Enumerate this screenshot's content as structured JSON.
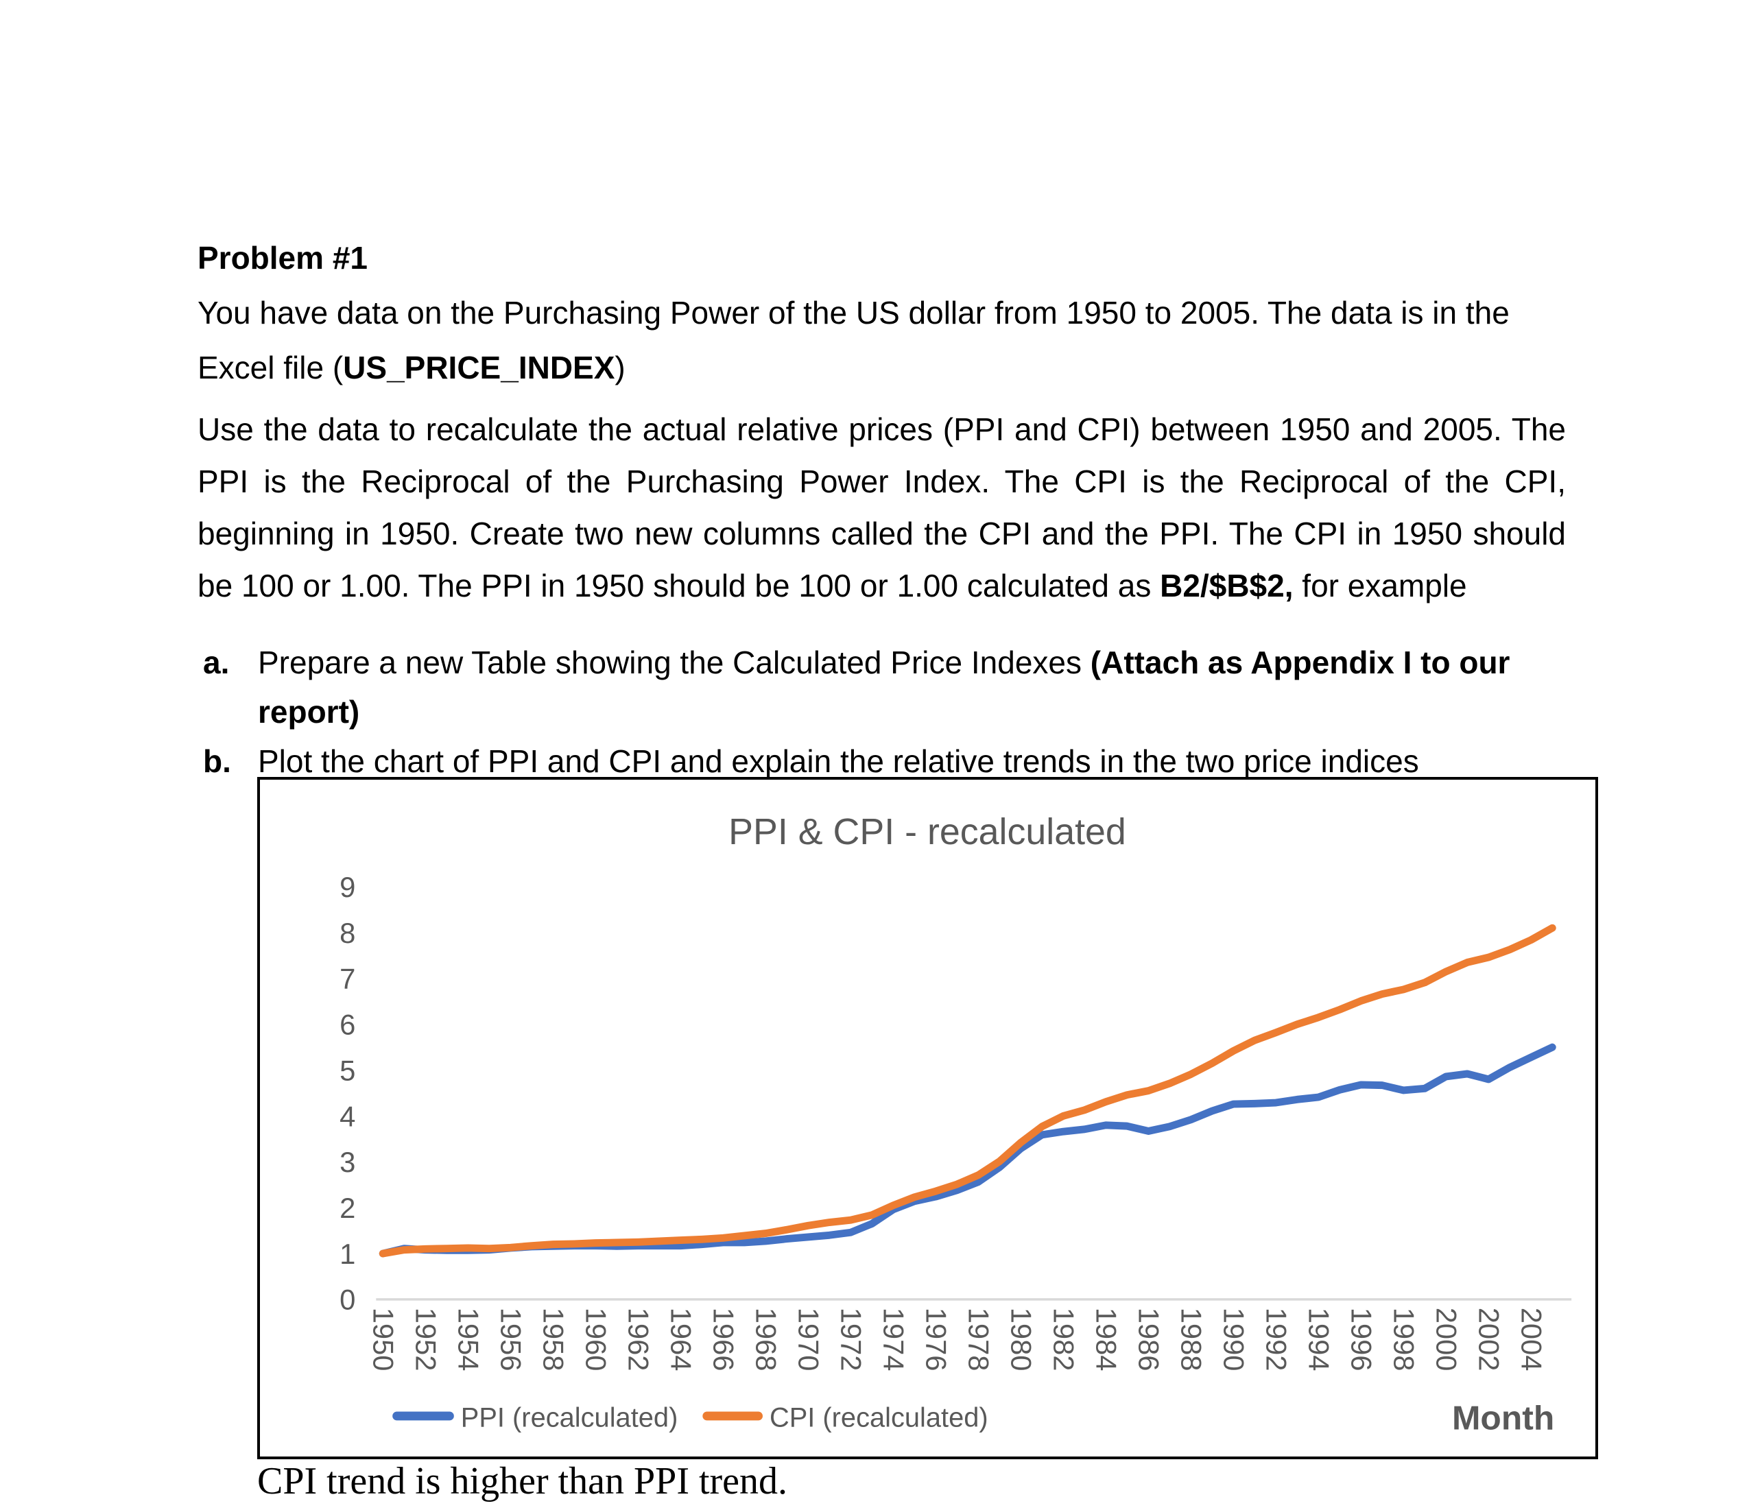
{
  "document": {
    "heading": "Problem #1",
    "para1": {
      "before": "You have data on the Purchasing Power of the US dollar from 1950 to 2005. The data is in the Excel file (",
      "bold": "US_PRICE_INDEX",
      "after": ")"
    },
    "para2": {
      "before": "Use the data to recalculate the actual relative prices (PPI and CPI) between 1950 and 2005. The PPI is the Reciprocal of the Purchasing Power Index. The CPI is the Reciprocal of the CPI, beginning in 1950. Create two new columns called the CPI and the PPI.  The CPI in 1950 should be 100 or 1.00. The PPI in 1950 should be 100 or 1.00 calculated as ",
      "bold": "B2/$B$2,",
      "after": " for example"
    },
    "list": [
      {
        "marker": "a.",
        "text": "Prepare a new Table showing the Calculated Price Indexes ",
        "bold": "(Attach as Appendix I to our report)"
      },
      {
        "marker": "b.",
        "text": "Plot the chart of PPI and CPI and explain the relative trends in the two price indices",
        "bold": ""
      }
    ],
    "caption": "CPI trend is higher than PPI trend."
  },
  "chart": {
    "title": "PPI & CPI - recalculated",
    "xlabel": "Month",
    "colors": {
      "ppi": "#4472C4",
      "cpi": "#ED7D31",
      "axis_text": "#595959",
      "title_text": "#595959",
      "zero_line": "#D9D9D9"
    }
  },
  "chart_data": {
    "type": "line",
    "title": "PPI & CPI - recalculated",
    "xlabel": "Month",
    "ylabel": "",
    "ylim": [
      0,
      9
    ],
    "y_ticks": [
      0,
      1,
      2,
      3,
      4,
      5,
      6,
      7,
      8,
      9
    ],
    "grid": false,
    "legend_position": "bottom",
    "x": [
      1950,
      1951,
      1952,
      1953,
      1954,
      1955,
      1956,
      1957,
      1958,
      1959,
      1960,
      1961,
      1962,
      1963,
      1964,
      1965,
      1966,
      1967,
      1968,
      1969,
      1970,
      1971,
      1972,
      1973,
      1974,
      1975,
      1976,
      1977,
      1978,
      1979,
      1980,
      1981,
      1982,
      1983,
      1984,
      1985,
      1986,
      1987,
      1988,
      1989,
      1990,
      1991,
      1992,
      1993,
      1994,
      1995,
      1996,
      1997,
      1998,
      1999,
      2000,
      2001,
      2002,
      2003,
      2004,
      2005
    ],
    "x_tick_labels": [
      "1950",
      "1952",
      "1954",
      "1956",
      "1958",
      "1960",
      "1962",
      "1964",
      "1966",
      "1968",
      "1970",
      "1972",
      "1974",
      "1976",
      "1978",
      "1980",
      "1982",
      "1984",
      "1986",
      "1988",
      "1990",
      "1992",
      "1994",
      "1996",
      "1998",
      "2000",
      "2002",
      "2004"
    ],
    "series": [
      {
        "name": "PPI (recalculated)",
        "color": "#4472C4",
        "values": [
          1.0,
          1.11,
          1.08,
          1.07,
          1.07,
          1.08,
          1.12,
          1.15,
          1.16,
          1.17,
          1.17,
          1.16,
          1.17,
          1.17,
          1.17,
          1.2,
          1.24,
          1.24,
          1.27,
          1.32,
          1.36,
          1.4,
          1.46,
          1.65,
          1.96,
          2.14,
          2.24,
          2.38,
          2.56,
          2.88,
          3.29,
          3.59,
          3.66,
          3.71,
          3.8,
          3.78,
          3.67,
          3.77,
          3.92,
          4.11,
          4.26,
          4.27,
          4.29,
          4.36,
          4.41,
          4.57,
          4.68,
          4.67,
          4.56,
          4.6,
          4.86,
          4.92,
          4.8,
          5.06,
          5.28,
          5.5
        ]
      },
      {
        "name": "CPI (recalculated)",
        "color": "#ED7D31",
        "values": [
          1.0,
          1.08,
          1.1,
          1.11,
          1.12,
          1.11,
          1.13,
          1.17,
          1.2,
          1.21,
          1.23,
          1.24,
          1.25,
          1.27,
          1.29,
          1.31,
          1.34,
          1.39,
          1.44,
          1.52,
          1.61,
          1.68,
          1.73,
          1.84,
          2.05,
          2.23,
          2.36,
          2.51,
          2.71,
          3.01,
          3.42,
          3.77,
          4.0,
          4.13,
          4.31,
          4.46,
          4.55,
          4.71,
          4.91,
          5.15,
          5.42,
          5.65,
          5.82,
          6.0,
          6.15,
          6.32,
          6.51,
          6.66,
          6.76,
          6.91,
          7.15,
          7.35,
          7.46,
          7.63,
          7.84,
          8.1
        ]
      }
    ]
  }
}
